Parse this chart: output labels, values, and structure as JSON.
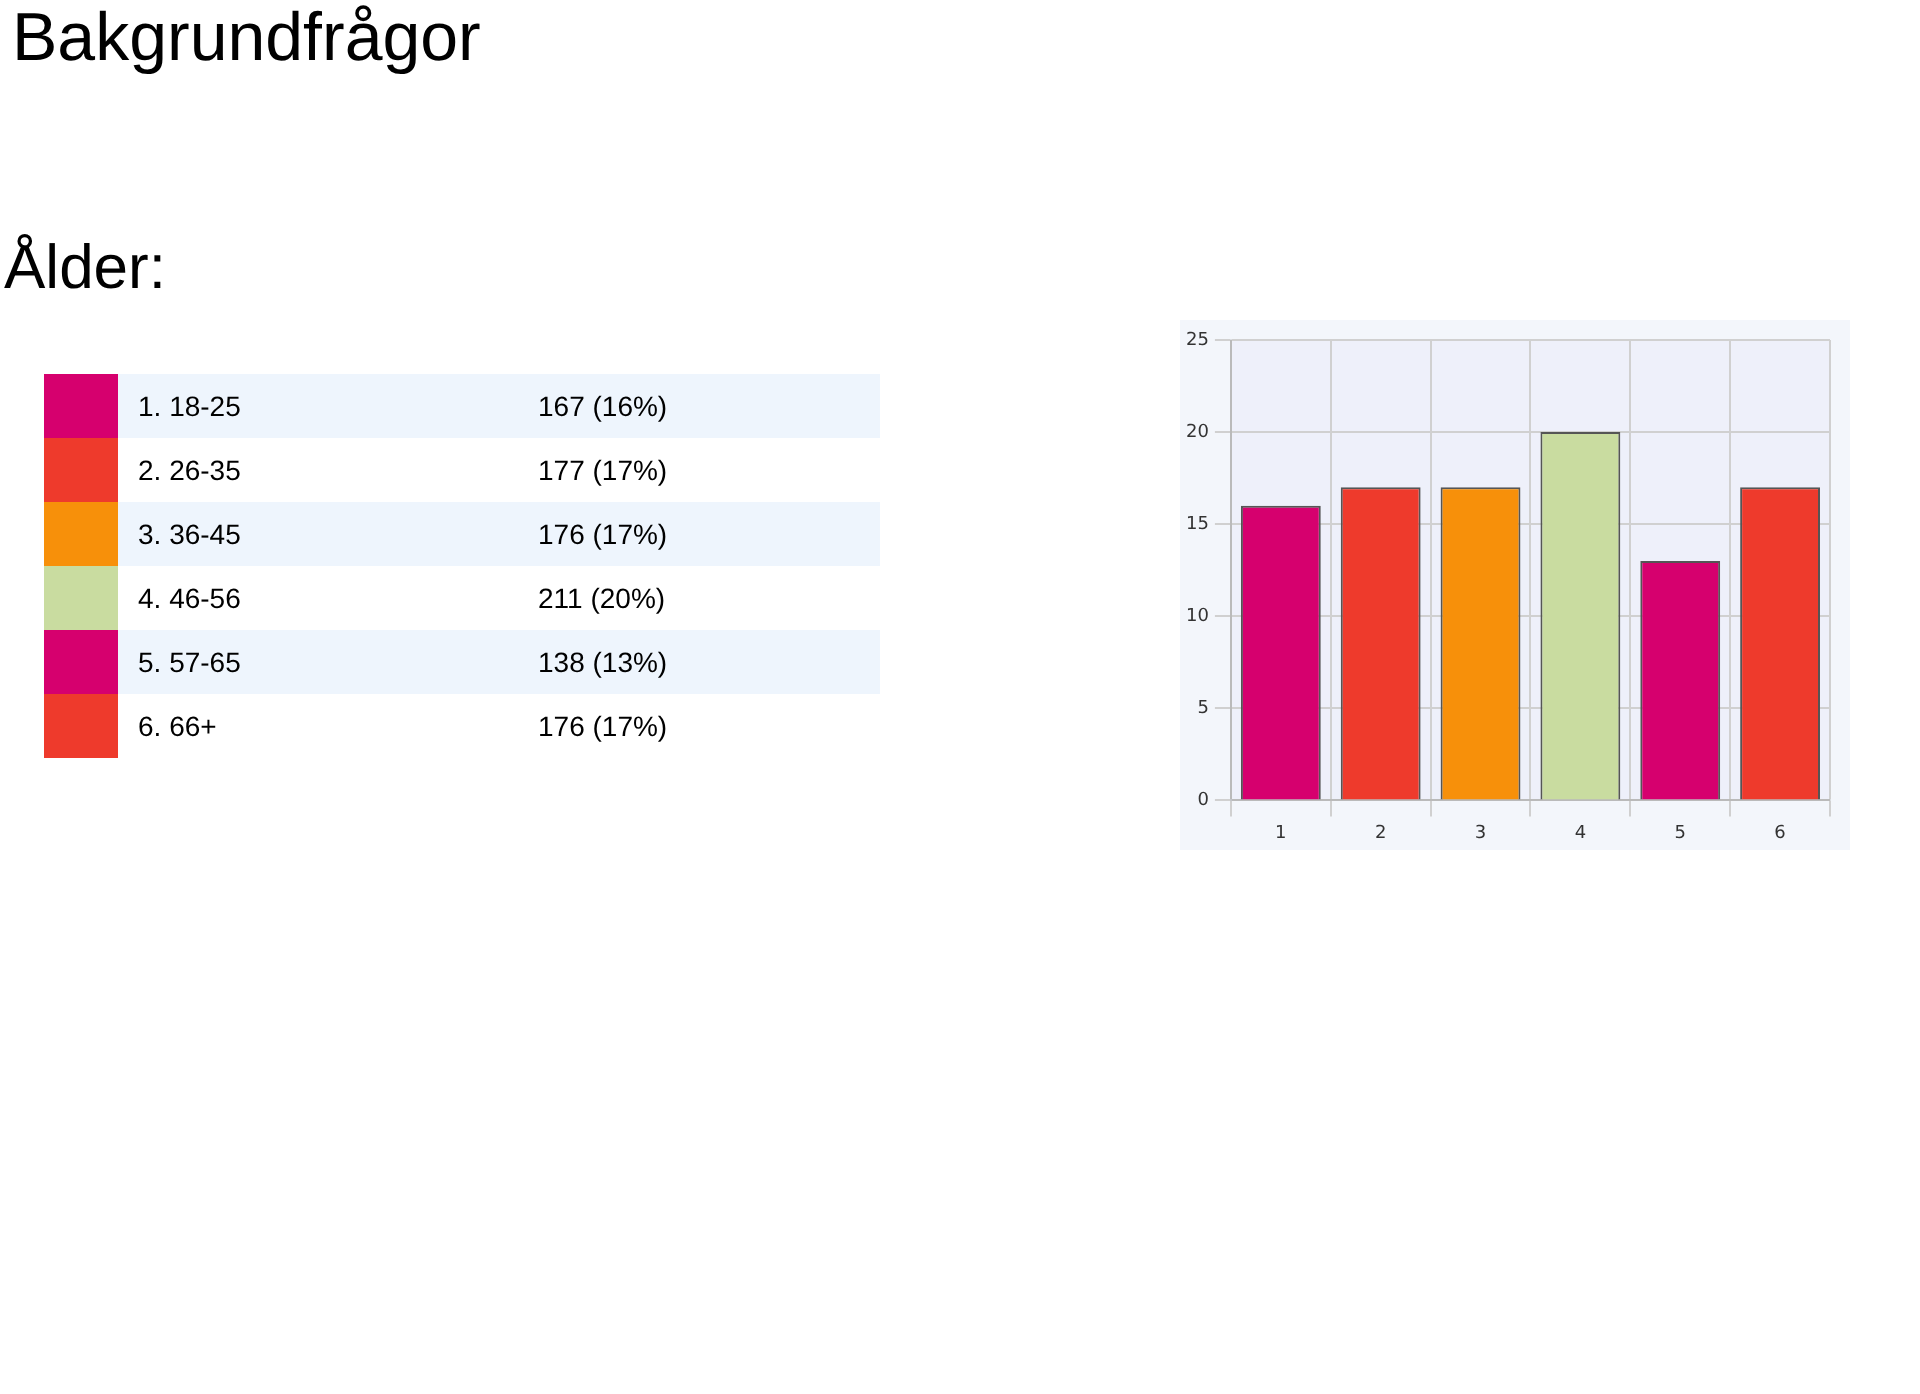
{
  "chart_data": [
    {
      "type": "other",
      "title": "Bakgrundfrågor",
      "subtitle": "Ålder:",
      "annotations": [
        "1. 18-25",
        "167 (16%)",
        "2. 26-35",
        "177 (17%)",
        "3. 36-45",
        "176 (17%)",
        "4. 46-56",
        "211 (20%)",
        "5. 57-65",
        "138 (13%)",
        "6. 66+",
        "176 (17%)"
      ],
      "colors": [
        "#d6006e",
        "#ee3a2c",
        "#f7900a",
        "#c9dca0",
        "#d6006e",
        "#ee3a2c"
      ]
    },
    {
      "type": "bar",
      "categories": [
        "1",
        "2",
        "3",
        "4",
        "5",
        "6"
      ],
      "values": [
        16,
        17,
        17,
        20,
        13,
        17
      ],
      "colors": [
        "#d6006e",
        "#ee3a2c",
        "#f7900a",
        "#c9dca0",
        "#d6006e",
        "#ee3a2c"
      ],
      "ylim": [
        0,
        25
      ],
      "yticks": [
        0,
        5,
        10,
        15,
        20,
        25
      ],
      "grid": true
    }
  ]
}
